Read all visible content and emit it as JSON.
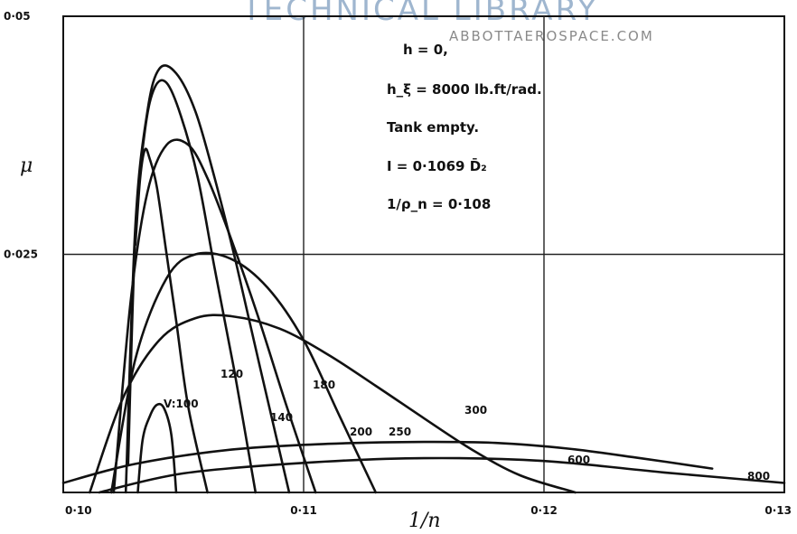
{
  "watermark": {
    "library": "TECHNICAL LIBRARY",
    "site": "ABBOTTAEROSPACE.COM"
  },
  "chart_data": {
    "type": "line",
    "xlabel": "1/n",
    "ylabel": "μ",
    "xlim": [
      0.1,
      0.13
    ],
    "ylim": [
      0,
      0.05
    ],
    "x_ticks": [
      {
        "v": 0.1,
        "label": "0·10"
      },
      {
        "v": 0.11,
        "label": "0·11"
      },
      {
        "v": 0.12,
        "label": "0·12"
      },
      {
        "v": 0.13,
        "label": "0·13"
      }
    ],
    "y_ticks": [
      {
        "v": 0.05,
        "label": "0·05"
      },
      {
        "v": 0.025,
        "label": "0·025"
      }
    ],
    "grid": {
      "x": [
        0.11,
        0.12
      ],
      "y": [
        0.025
      ]
    },
    "annotations": [
      {
        "text": "h = 0,"
      },
      {
        "text": "h_ξ = 8000 lb.ft/rad."
      },
      {
        "text": "Tank empty."
      },
      {
        "text": "I = 0·1069 D̄₂"
      },
      {
        "text": "1/ρ_n = 0·108"
      }
    ],
    "series": [
      {
        "name": "V=100",
        "label": "V:100",
        "x": [
          0.1031,
          0.1033,
          0.1036,
          0.1039,
          0.1042,
          0.1045,
          0.1047
        ],
        "y": [
          0.0,
          0.0055,
          0.008,
          0.0092,
          0.0088,
          0.006,
          0.0
        ]
      },
      {
        "name": "120",
        "label": "120",
        "x": [
          0.103,
          0.1032,
          0.1034,
          0.1036,
          0.1039,
          0.1043,
          0.1047,
          0.1052,
          0.106
        ],
        "y": [
          0.026,
          0.033,
          0.036,
          0.035,
          0.032,
          0.025,
          0.018,
          0.009,
          0.0
        ]
      },
      {
        "name": "140",
        "label": "140",
        "x": [
          0.1027,
          0.103,
          0.1034,
          0.1038,
          0.1043,
          0.1049,
          0.1056,
          0.1063,
          0.1071,
          0.108
        ],
        "y": [
          0.003,
          0.027,
          0.038,
          0.0425,
          0.043,
          0.0395,
          0.033,
          0.0235,
          0.013,
          0.0
        ]
      },
      {
        "name": "180",
        "label": "180",
        "x": [
          0.1026,
          0.103,
          0.1035,
          0.104,
          0.1047,
          0.1055,
          0.1063,
          0.1072,
          0.1082,
          0.1094
        ],
        "y": [
          0.0,
          0.028,
          0.04,
          0.0445,
          0.044,
          0.04,
          0.033,
          0.024,
          0.013,
          0.0
        ]
      },
      {
        "name": "200",
        "label": "200",
        "x": [
          0.1021,
          0.1028,
          0.1035,
          0.1043,
          0.1052,
          0.106,
          0.107,
          0.1081,
          0.1093,
          0.1105
        ],
        "y": [
          0.0,
          0.02,
          0.0315,
          0.0365,
          0.0365,
          0.033,
          0.0265,
          0.0185,
          0.009,
          0.0
        ]
      },
      {
        "name": "250",
        "label": "250",
        "x": [
          0.102,
          0.103,
          0.1043,
          0.1055,
          0.107,
          0.1085,
          0.11,
          0.1115,
          0.113
        ],
        "y": [
          0.0,
          0.014,
          0.0225,
          0.025,
          0.0245,
          0.0215,
          0.016,
          0.008,
          0.0
        ]
      },
      {
        "name": "300",
        "label": "300",
        "x": [
          0.1011,
          0.1025,
          0.104,
          0.1055,
          0.107,
          0.109,
          0.111,
          0.113,
          0.115,
          0.117,
          0.119,
          0.1213
        ],
        "y": [
          0.0,
          0.01,
          0.016,
          0.0183,
          0.0185,
          0.0172,
          0.0145,
          0.0112,
          0.0078,
          0.0045,
          0.0018,
          0.0
        ]
      },
      {
        "name": "600",
        "label": "600",
        "x": [
          0.1,
          0.103,
          0.107,
          0.111,
          0.115,
          0.118,
          0.121,
          0.124,
          0.127
        ],
        "y": [
          0.001,
          0.003,
          0.0045,
          0.0051,
          0.0053,
          0.0052,
          0.0046,
          0.0036,
          0.0025
        ]
      },
      {
        "name": "800",
        "label": "800",
        "x": [
          0.1015,
          0.105,
          0.11,
          0.115,
          0.12,
          0.125,
          0.13
        ],
        "y": [
          0.0,
          0.002,
          0.0031,
          0.0036,
          0.0033,
          0.0021,
          0.001
        ]
      }
    ]
  }
}
